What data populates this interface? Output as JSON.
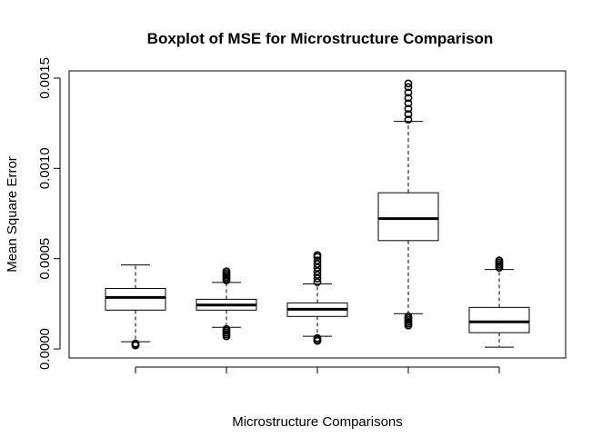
{
  "chart_data": {
    "type": "boxplot",
    "title": "Boxplot of MSE for Microstructure Comparison",
    "xlabel": "Microstructure Comparisons",
    "ylabel": "Mean Square Error",
    "ylim": [
      -5e-05,
      0.00154
    ],
    "yticks": [
      {
        "value": 0.0,
        "label": "0.0000"
      },
      {
        "value": 0.0005,
        "label": "0.0005"
      },
      {
        "value": 0.001,
        "label": "0.0010"
      },
      {
        "value": 0.0015,
        "label": "0.0015"
      }
    ],
    "grid": false,
    "color": "#000000",
    "boxes": [
      {
        "position": 1,
        "whisker_low": 4e-05,
        "q1": 0.000215,
        "median": 0.000285,
        "q3": 0.000335,
        "whisker_high": 0.000465,
        "outliers_low": [
          2e-05,
          2.5e-05,
          3e-05
        ],
        "outliers_high": []
      },
      {
        "position": 2,
        "whisker_low": 0.00012,
        "q1": 0.000215,
        "median": 0.000243,
        "q3": 0.000275,
        "whisker_high": 0.000368,
        "outliers_low": [
          7e-05,
          8e-05,
          9e-05,
          0.0001,
          0.00011
        ],
        "outliers_high": [
          0.00038,
          0.00039,
          0.0004,
          0.00041,
          0.00042,
          0.00043
        ]
      },
      {
        "position": 3,
        "whisker_low": 7e-05,
        "q1": 0.00018,
        "median": 0.00022,
        "q3": 0.000255,
        "whisker_high": 0.00036,
        "outliers_low": [
          4.5e-05,
          5e-05,
          6e-05
        ],
        "outliers_high": [
          0.00037,
          0.00039,
          0.00041,
          0.00043,
          0.00045,
          0.00047,
          0.00049,
          0.00051,
          0.00052
        ]
      },
      {
        "position": 4,
        "whisker_low": 0.000195,
        "q1": 0.0006,
        "median": 0.000722,
        "q3": 0.000865,
        "whisker_high": 0.00126,
        "outliers_low": [
          0.00013,
          0.00014,
          0.00015,
          0.00016,
          0.00017,
          0.00018
        ],
        "outliers_high": [
          0.00127,
          0.0013,
          0.00133,
          0.00136,
          0.00139,
          0.00142,
          0.00145,
          0.00147
        ]
      },
      {
        "position": 5,
        "whisker_low": 1e-05,
        "q1": 9e-05,
        "median": 0.00015,
        "q3": 0.00023,
        "whisker_high": 0.00044,
        "outliers_low": [],
        "outliers_high": [
          0.00045,
          0.00046,
          0.00047,
          0.00048,
          0.00049
        ]
      }
    ]
  }
}
